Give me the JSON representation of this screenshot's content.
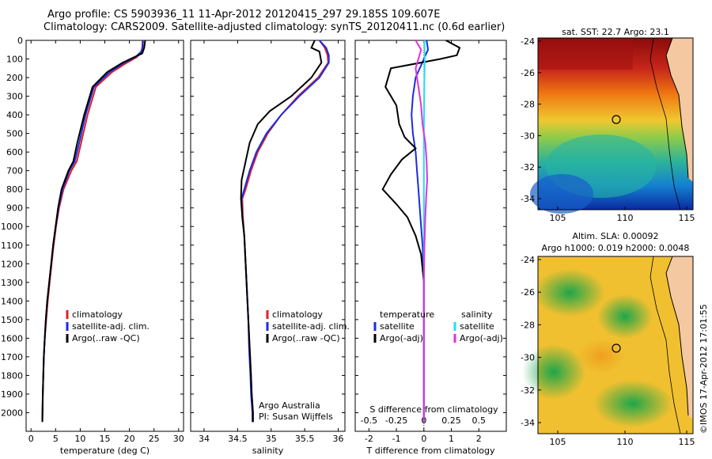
{
  "titles": {
    "line1": "Argo profile: CS 5903936_11 11-Apr-2012 20120415_297 29.185S 109.607E",
    "line2": "Climatology: CARS2009. Satellite-adjusted climatology: synTS_20120411.nc (0.6d earlier)"
  },
  "depth_axis": {
    "ylim": [
      0,
      2100
    ],
    "ticks": [
      0,
      100,
      200,
      300,
      400,
      500,
      600,
      700,
      800,
      900,
      1000,
      1100,
      1200,
      1300,
      1400,
      1500,
      1600,
      1700,
      1800,
      1900,
      2000
    ]
  },
  "colors": {
    "climatology": "#e0202a",
    "satellite": "#1a2de0",
    "argo": "#000000",
    "sat_salinity": "#20e0f0",
    "argo_salinity_diff": "#e030e0"
  },
  "chart_data": [
    {
      "type": "line",
      "panel": "temperature",
      "xlabel": "temperature (deg C)",
      "xlim": [
        -1,
        31
      ],
      "xticks": [
        0,
        5,
        10,
        15,
        20,
        25,
        30
      ],
      "legend": [
        "climatology",
        "satellite-adj. clim.",
        "Argo(..raw -QC)"
      ],
      "series": [
        {
          "name": "climatology",
          "x": [
            22.8,
            22.7,
            22.5,
            21.5,
            19.5,
            16.5,
            13.2,
            11.5,
            10.2,
            9.3,
            8.2,
            6.6,
            5.7,
            5.1,
            4.6,
            4.2,
            3.8,
            3.4,
            3.1,
            2.8,
            2.6,
            2.4,
            2.3
          ],
          "y": [
            0,
            40,
            60,
            90,
            120,
            170,
            250,
            400,
            550,
            650,
            700,
            800,
            900,
            1000,
            1100,
            1200,
            1300,
            1400,
            1500,
            1600,
            1700,
            1900,
            2050
          ]
        },
        {
          "name": "satellite-adj. clim.",
          "x": [
            22.7,
            22.6,
            22.4,
            21.2,
            19.0,
            16.0,
            12.8,
            11.1,
            9.8,
            8.9,
            7.8,
            6.4,
            5.6,
            5.0,
            4.5,
            4.1,
            3.7,
            3.3,
            3.0,
            2.8,
            2.6,
            2.4,
            2.3
          ],
          "y": [
            0,
            40,
            60,
            90,
            120,
            170,
            250,
            400,
            550,
            650,
            700,
            800,
            900,
            1000,
            1100,
            1200,
            1300,
            1400,
            1500,
            1600,
            1700,
            1900,
            2050
          ]
        },
        {
          "name": "Argo(..raw -QC)",
          "x": [
            23.2,
            23.0,
            22.6,
            21.0,
            18.6,
            15.5,
            12.5,
            10.8,
            9.4,
            8.6,
            7.6,
            6.2,
            5.5,
            5.0,
            4.5,
            4.1,
            3.7,
            3.3,
            3.0,
            2.8,
            2.6,
            2.4,
            2.3
          ],
          "y": [
            0,
            40,
            70,
            90,
            120,
            170,
            250,
            400,
            550,
            650,
            700,
            800,
            900,
            1000,
            1100,
            1200,
            1300,
            1400,
            1500,
            1600,
            1700,
            1900,
            2050
          ]
        }
      ]
    },
    {
      "type": "line",
      "panel": "salinity",
      "xlabel": "salinity",
      "xlim": [
        33.8,
        36.1
      ],
      "xticks": [
        34,
        34.5,
        35,
        35.5,
        36
      ],
      "legend": [
        "climatology",
        "satellite-adj. clim.",
        "Argo(..raw -QC)"
      ],
      "annotation": [
        "Argo Australia",
        "PI: Susan Wijffels"
      ],
      "series": [
        {
          "name": "climatology",
          "x": [
            35.72,
            35.8,
            35.84,
            35.85,
            35.7,
            35.4,
            35.15,
            34.95,
            34.8,
            34.7,
            34.62,
            34.57,
            34.58,
            34.6,
            34.62,
            34.64,
            34.66,
            34.68,
            34.7,
            34.71,
            34.72,
            34.73,
            34.73
          ],
          "y": [
            0,
            40,
            80,
            120,
            200,
            300,
            400,
            500,
            600,
            700,
            800,
            850,
            950,
            1050,
            1200,
            1350,
            1500,
            1650,
            1800,
            1900,
            1950,
            2000,
            2050
          ]
        },
        {
          "name": "satellite-adj. clim.",
          "x": [
            35.72,
            35.82,
            35.86,
            35.86,
            35.72,
            35.42,
            35.15,
            34.93,
            34.78,
            34.68,
            34.6,
            34.56,
            34.57,
            34.6,
            34.62,
            34.64,
            34.66,
            34.67,
            34.69,
            34.7,
            34.71,
            34.72,
            34.72
          ],
          "y": [
            0,
            40,
            80,
            120,
            200,
            300,
            400,
            500,
            600,
            700,
            800,
            850,
            950,
            1050,
            1200,
            1350,
            1500,
            1650,
            1800,
            1900,
            1950,
            2000,
            2050
          ]
        },
        {
          "name": "Argo(..raw -QC)",
          "x": [
            35.65,
            35.6,
            35.72,
            35.75,
            35.6,
            35.3,
            34.98,
            34.8,
            34.68,
            34.62,
            34.56,
            34.55,
            34.57,
            34.6,
            34.62,
            34.64,
            34.66,
            34.68,
            34.7,
            34.71,
            34.72,
            34.73,
            34.73
          ],
          "y": [
            0,
            40,
            60,
            120,
            200,
            300,
            380,
            450,
            550,
            650,
            750,
            850,
            950,
            1050,
            1200,
            1350,
            1500,
            1650,
            1800,
            1900,
            1950,
            2000,
            2050
          ]
        }
      ]
    },
    {
      "type": "line",
      "panel": "difference",
      "xlabel": "T difference from climatology",
      "xlabel_top": "S difference from climatology",
      "xlim": [
        -2.5,
        3
      ],
      "xticks": [
        -2,
        -1,
        0,
        1,
        2
      ],
      "sticks": [
        "-0.5",
        "-0.25",
        "0",
        "0.25",
        "0.5"
      ],
      "legend_temperature": {
        "header": "temperature",
        "items": [
          "satellite",
          "Argo(-adj)"
        ]
      },
      "legend_salinity": {
        "header": "salinity",
        "items": [
          "satellite",
          "Argo(-adj)"
        ]
      },
      "series": [
        {
          "name": "T satellite",
          "x": [
            0.1,
            0.15,
            0.0,
            -0.3,
            -0.4,
            -0.45,
            -0.4,
            -0.3,
            -0.25,
            -0.2,
            -0.15,
            -0.1,
            -0.05,
            0.0,
            0.0,
            0.0,
            0.0,
            0.0,
            0.0
          ],
          "y": [
            0,
            50,
            100,
            200,
            300,
            400,
            500,
            600,
            700,
            800,
            900,
            1000,
            1100,
            1300,
            1500,
            1700,
            1900,
            2000,
            2050
          ]
        },
        {
          "name": "T Argo(-adj)",
          "x": [
            0.8,
            1.3,
            1.2,
            0.6,
            -1.2,
            -1.4,
            -1.0,
            -0.9,
            -0.7,
            -0.3,
            -0.8,
            -1.2,
            -1.5,
            -1.0,
            -0.6,
            -0.3,
            -0.1,
            0.0,
            0.0,
            0.0,
            0.0
          ],
          "y": [
            0,
            40,
            80,
            100,
            150,
            250,
            350,
            450,
            520,
            580,
            640,
            720,
            800,
            880,
            950,
            1050,
            1150,
            1300,
            1500,
            1800,
            2050
          ]
        },
        {
          "name": "S satellite",
          "x": [
            0.02,
            0.03,
            0.02,
            0.01,
            0.0,
            0.0,
            0.0,
            0.0,
            0.0,
            0.0,
            0.0
          ],
          "y": [
            0,
            100,
            200,
            300,
            500,
            700,
            900,
            1100,
            1400,
            1800,
            2050
          ]
        },
        {
          "name": "S Argo(-adj)",
          "x": [
            -0.3,
            -0.1,
            -0.2,
            -0.3,
            -0.2,
            -0.1,
            -0.05,
            0.05,
            0.1,
            0.12,
            0.08,
            0.05,
            0.02,
            0.0,
            0.0,
            0.0
          ],
          "y": [
            0,
            50,
            100,
            150,
            250,
            350,
            450,
            550,
            650,
            750,
            850,
            950,
            1100,
            1300,
            1600,
            2050
          ]
        }
      ]
    }
  ],
  "maps": {
    "top": {
      "title": "sat. SST: 22.7  Argo: 23.1",
      "yticks": [
        "-24",
        "-26",
        "-28",
        "-30",
        "-32",
        "-34"
      ],
      "xticks": [
        "105",
        "110",
        "115"
      ]
    },
    "bottom": {
      "title_line1": "Altim. SLA: 0.00092",
      "title_line2": "Argo h1000: 0.019  h2000: 0.0048",
      "yticks": [
        "-24",
        "-26",
        "-28",
        "-30",
        "-32",
        "-34"
      ],
      "xticks": [
        "105",
        "110",
        "115"
      ]
    },
    "side_stamp": "©IMOS 17-Apr-2012 17:01:55"
  }
}
